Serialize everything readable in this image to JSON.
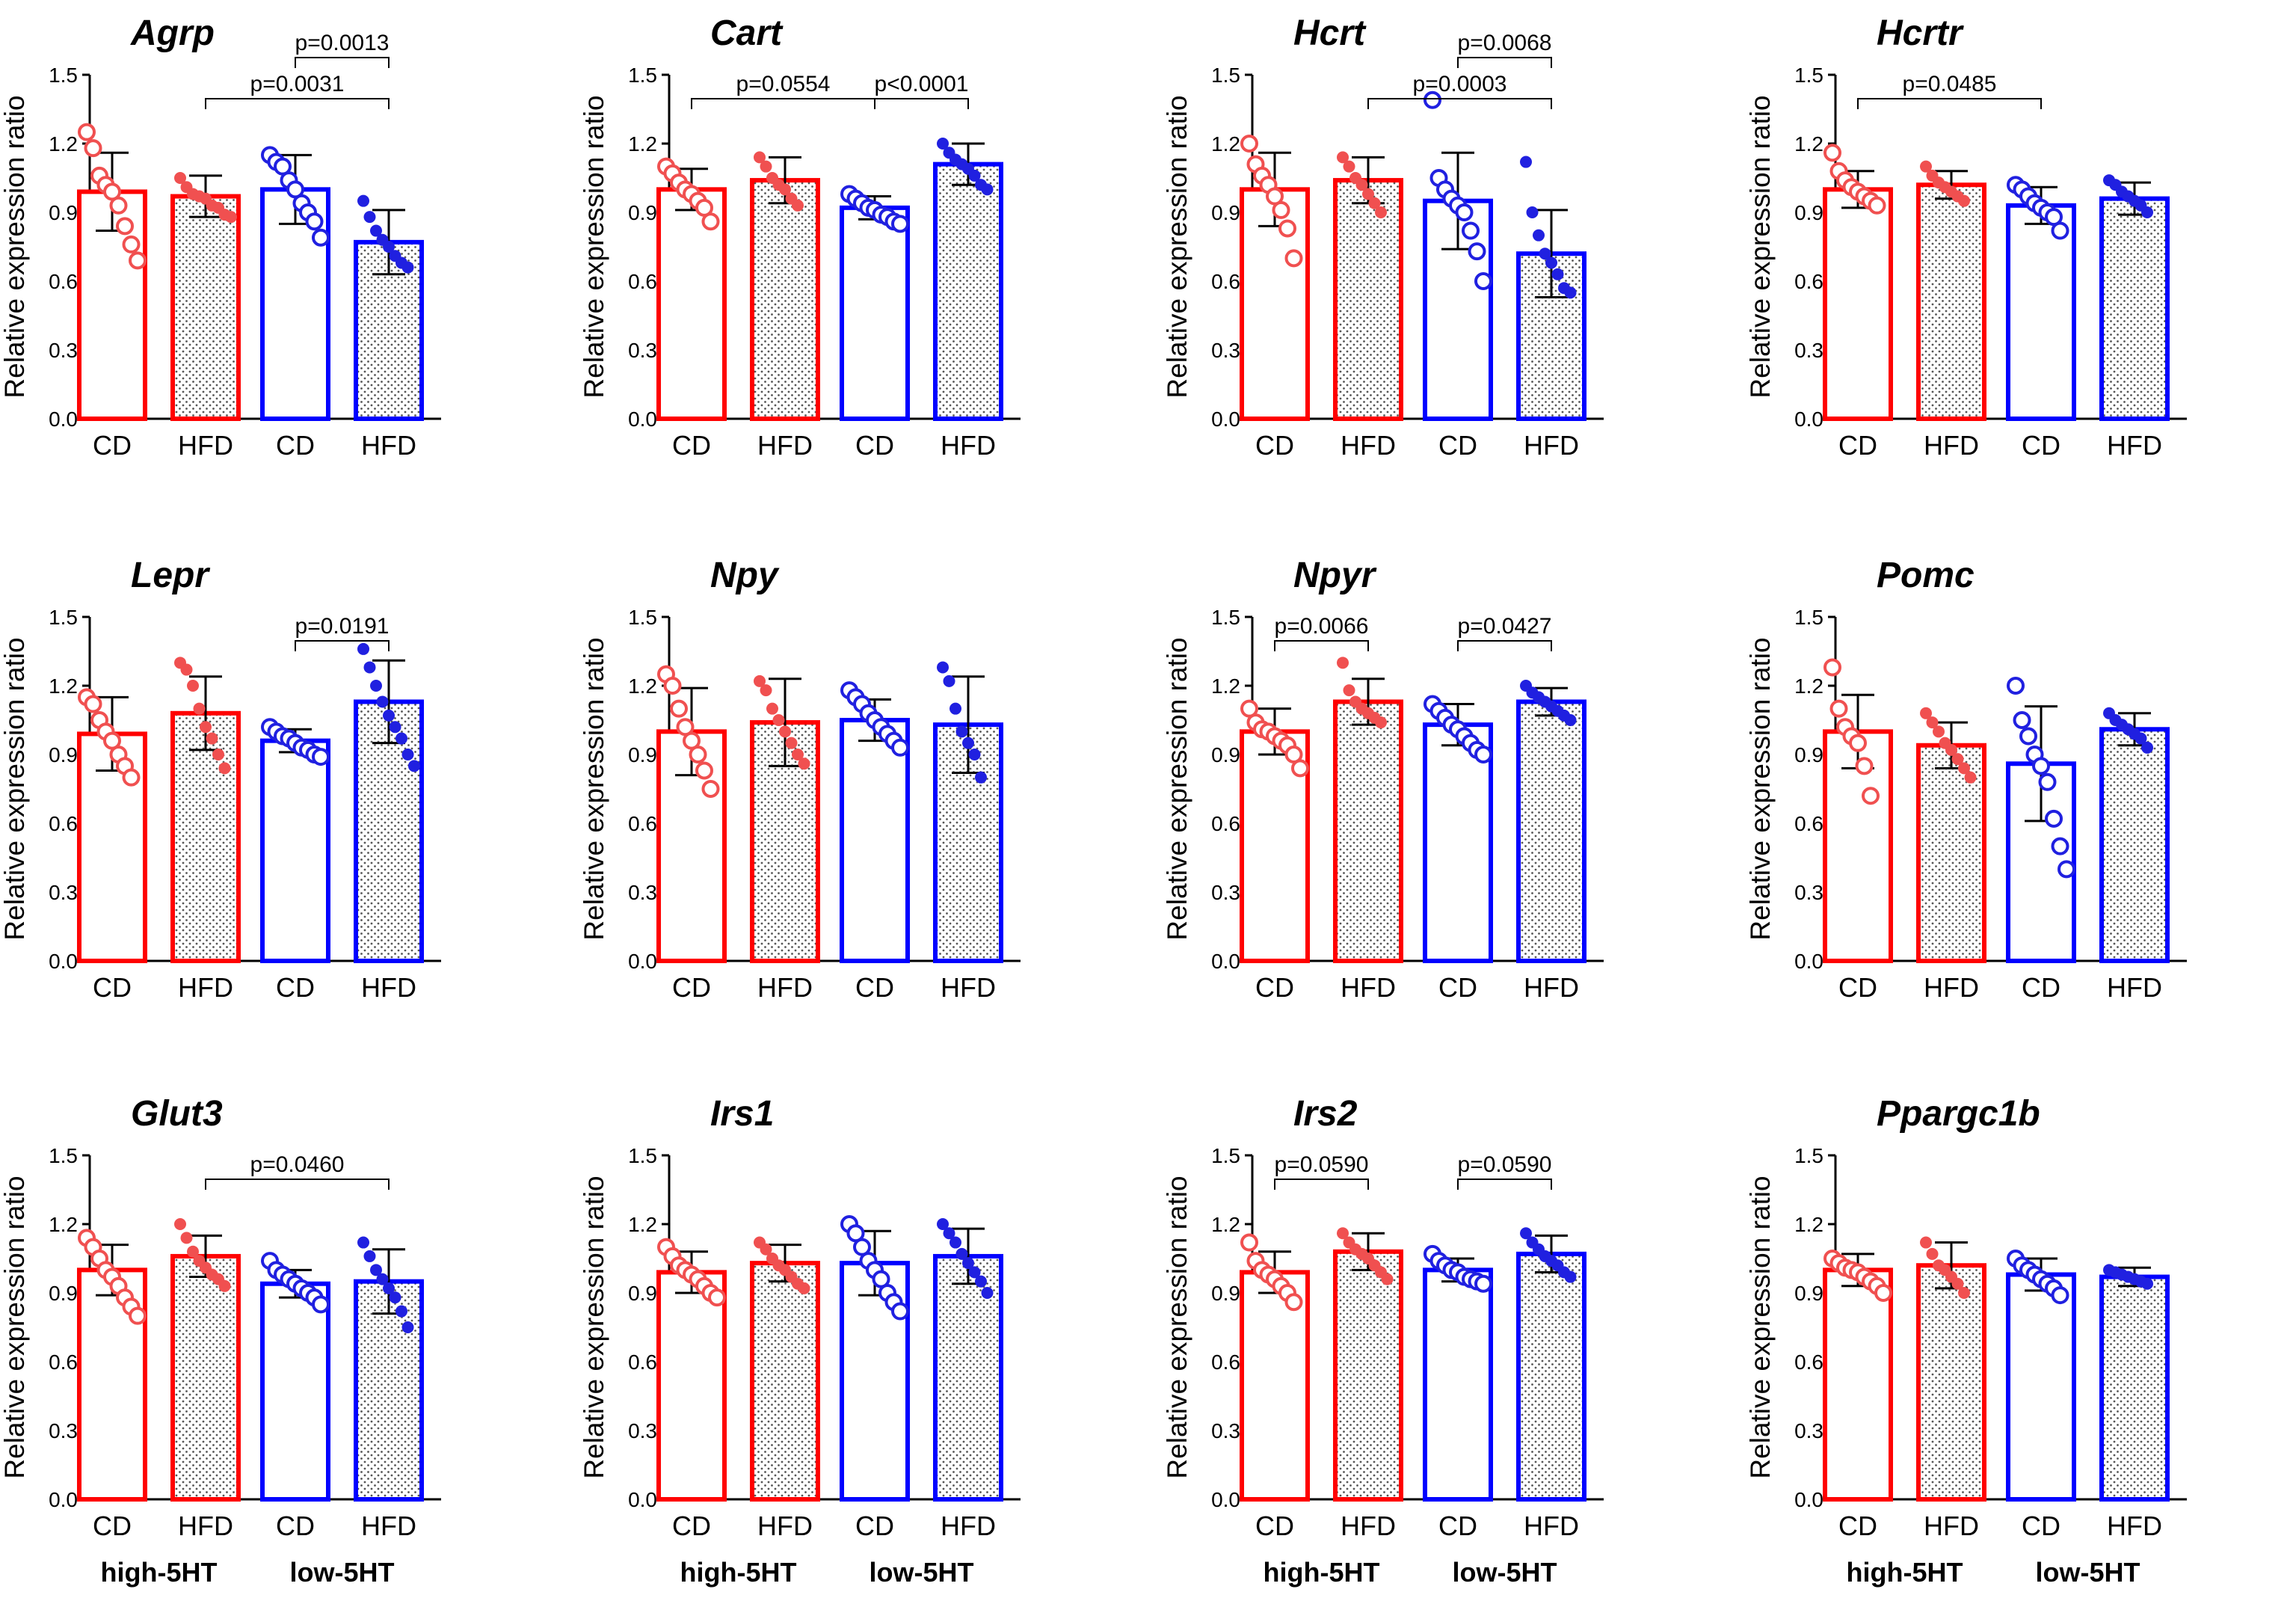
{
  "figure": {
    "colors": {
      "high": "#ff0000",
      "low": "#0000ff",
      "axis": "#000000",
      "point_high": "#f05050",
      "point_low": "#2020e0"
    },
    "group_labels": [
      "high-5HT",
      "low-5HT"
    ]
  },
  "chart_data": [
    {
      "type": "bar",
      "title": "Agrp",
      "ylabel": "Relative expression ratio",
      "ylim": [
        0,
        1.5
      ],
      "yticks": [
        "0.0",
        "0.3",
        "0.6",
        "0.9",
        "1.2",
        "1.5"
      ],
      "categories": [
        "CD",
        "HFD",
        "CD",
        "HFD"
      ],
      "means": [
        0.99,
        0.97,
        1.0,
        0.77
      ],
      "sd": [
        0.17,
        0.09,
        0.15,
        0.14
      ],
      "points": [
        [
          1.25,
          1.18,
          1.06,
          1.02,
          0.99,
          0.93,
          0.84,
          0.76,
          0.69
        ],
        [
          1.05,
          1.01,
          0.98,
          0.97,
          0.96,
          0.93,
          0.92,
          0.89,
          0.88
        ],
        [
          1.15,
          1.12,
          1.1,
          1.04,
          1.0,
          0.94,
          0.9,
          0.86,
          0.79
        ],
        [
          0.95,
          0.88,
          0.82,
          0.78,
          0.75,
          0.71,
          0.68,
          0.66
        ]
      ],
      "comparisons": [
        {
          "text": "p=0.0031",
          "from": 1,
          "to": 3,
          "level": 0
        },
        {
          "text": "p=0.0013",
          "from": 2,
          "to": 3,
          "level": 1
        }
      ],
      "show_group_labels": false
    },
    {
      "type": "bar",
      "title": "Cart",
      "ylabel": "Relative expression ratio",
      "ylim": [
        0,
        1.5
      ],
      "yticks": [
        "0.0",
        "0.3",
        "0.6",
        "0.9",
        "1.2",
        "1.5"
      ],
      "categories": [
        "CD",
        "HFD",
        "CD",
        "HFD"
      ],
      "means": [
        1.0,
        1.04,
        0.92,
        1.11
      ],
      "sd": [
        0.09,
        0.1,
        0.05,
        0.09
      ],
      "points": [
        [
          1.1,
          1.07,
          1.03,
          1.0,
          0.98,
          0.95,
          0.92,
          0.86
        ],
        [
          1.14,
          1.1,
          1.05,
          1.02,
          1.0,
          0.96,
          0.93
        ],
        [
          0.98,
          0.96,
          0.94,
          0.92,
          0.91,
          0.89,
          0.88,
          0.86,
          0.85
        ],
        [
          1.2,
          1.16,
          1.13,
          1.11,
          1.09,
          1.06,
          1.02,
          1.0
        ]
      ],
      "comparisons": [
        {
          "text": "p=0.0554",
          "from": 0,
          "to": 2,
          "level": 0
        },
        {
          "text": "p<0.0001",
          "from": 2,
          "to": 3,
          "level": 0
        }
      ],
      "show_group_labels": false
    },
    {
      "type": "bar",
      "title": "Hcrt",
      "ylabel": "Relative expression ratio",
      "ylim": [
        0,
        1.5
      ],
      "yticks": [
        "0.0",
        "0.3",
        "0.6",
        "0.9",
        "1.2",
        "1.5"
      ],
      "categories": [
        "CD",
        "HFD",
        "CD",
        "HFD"
      ],
      "means": [
        1.0,
        1.04,
        0.95,
        0.72
      ],
      "sd": [
        0.16,
        0.1,
        0.21,
        0.19
      ],
      "points": [
        [
          1.2,
          1.11,
          1.06,
          1.02,
          0.97,
          0.91,
          0.83,
          0.7
        ],
        [
          1.14,
          1.1,
          1.05,
          1.02,
          0.98,
          0.94,
          0.9
        ],
        [
          1.39,
          1.05,
          1.0,
          0.96,
          0.93,
          0.9,
          0.82,
          0.73,
          0.6
        ],
        [
          1.12,
          0.9,
          0.8,
          0.72,
          0.68,
          0.63,
          0.57,
          0.55
        ]
      ],
      "comparisons": [
        {
          "text": "p=0.0003",
          "from": 1,
          "to": 3,
          "level": 0
        },
        {
          "text": "p=0.0068",
          "from": 2,
          "to": 3,
          "level": 1
        }
      ],
      "show_group_labels": false
    },
    {
      "type": "bar",
      "title": "Hcrtr",
      "ylabel": "Relative expression ratio",
      "ylim": [
        0,
        1.5
      ],
      "yticks": [
        "0.0",
        "0.3",
        "0.6",
        "0.9",
        "1.2",
        "1.5"
      ],
      "categories": [
        "CD",
        "HFD",
        "CD",
        "HFD"
      ],
      "means": [
        1.0,
        1.02,
        0.93,
        0.96
      ],
      "sd": [
        0.08,
        0.06,
        0.08,
        0.07
      ],
      "points": [
        [
          1.16,
          1.08,
          1.04,
          1.01,
          0.99,
          0.97,
          0.95,
          0.93
        ],
        [
          1.1,
          1.06,
          1.03,
          1.01,
          0.99,
          0.97,
          0.95
        ],
        [
          1.02,
          1.0,
          0.97,
          0.94,
          0.92,
          0.9,
          0.88,
          0.82
        ],
        [
          1.04,
          1.02,
          0.99,
          0.97,
          0.95,
          0.93,
          0.9
        ]
      ],
      "comparisons": [
        {
          "text": "p=0.0485",
          "from": 0,
          "to": 2,
          "level": 0
        }
      ],
      "show_group_labels": false
    },
    {
      "type": "bar",
      "title": "Lepr",
      "ylabel": "Relative expression ratio",
      "ylim": [
        0,
        1.5
      ],
      "yticks": [
        "0.0",
        "0.3",
        "0.6",
        "0.9",
        "1.2",
        "1.5"
      ],
      "categories": [
        "CD",
        "HFD",
        "CD",
        "HFD"
      ],
      "means": [
        0.99,
        1.08,
        0.96,
        1.13
      ],
      "sd": [
        0.16,
        0.16,
        0.05,
        0.18
      ],
      "points": [
        [
          1.15,
          1.12,
          1.05,
          1.0,
          0.96,
          0.9,
          0.85,
          0.8
        ],
        [
          1.3,
          1.27,
          1.2,
          1.1,
          1.02,
          0.97,
          0.9,
          0.84
        ],
        [
          1.02,
          1.0,
          0.98,
          0.97,
          0.95,
          0.93,
          0.92,
          0.9,
          0.89
        ],
        [
          1.36,
          1.28,
          1.2,
          1.13,
          1.07,
          1.02,
          0.97,
          0.9,
          0.85
        ]
      ],
      "comparisons": [
        {
          "text": "p=0.0191",
          "from": 2,
          "to": 3,
          "level": 0
        }
      ],
      "show_group_labels": false
    },
    {
      "type": "bar",
      "title": "Npy",
      "ylabel": "Relative expression ratio",
      "ylim": [
        0,
        1.5
      ],
      "yticks": [
        "0.0",
        "0.3",
        "0.6",
        "0.9",
        "1.2",
        "1.5"
      ],
      "categories": [
        "CD",
        "HFD",
        "CD",
        "HFD"
      ],
      "means": [
        1.0,
        1.04,
        1.05,
        1.03
      ],
      "sd": [
        0.19,
        0.19,
        0.09,
        0.21
      ],
      "points": [
        [
          1.25,
          1.2,
          1.1,
          1.02,
          0.96,
          0.9,
          0.83,
          0.75
        ],
        [
          1.22,
          1.18,
          1.1,
          1.05,
          1.0,
          0.95,
          0.9,
          0.86
        ],
        [
          1.18,
          1.15,
          1.12,
          1.08,
          1.05,
          1.02,
          0.99,
          0.96,
          0.93
        ],
        [
          1.28,
          1.22,
          1.1,
          1.0,
          0.95,
          0.9,
          0.8
        ]
      ],
      "comparisons": [],
      "show_group_labels": false
    },
    {
      "type": "bar",
      "title": "Npyr",
      "ylabel": "Relative expression ratio",
      "ylim": [
        0,
        1.5
      ],
      "yticks": [
        "0.0",
        "0.3",
        "0.6",
        "0.9",
        "1.2",
        "1.5"
      ],
      "categories": [
        "CD",
        "HFD",
        "CD",
        "HFD"
      ],
      "means": [
        1.0,
        1.13,
        1.03,
        1.13
      ],
      "sd": [
        0.1,
        0.1,
        0.09,
        0.06
      ],
      "points": [
        [
          1.1,
          1.04,
          1.01,
          1.0,
          0.98,
          0.96,
          0.94,
          0.9,
          0.84
        ],
        [
          1.3,
          1.18,
          1.13,
          1.1,
          1.08,
          1.06,
          1.04
        ],
        [
          1.12,
          1.09,
          1.06,
          1.03,
          1.01,
          0.98,
          0.95,
          0.92,
          0.9
        ],
        [
          1.2,
          1.17,
          1.15,
          1.13,
          1.11,
          1.09,
          1.07,
          1.05
        ]
      ],
      "comparisons": [
        {
          "text": "p=0.0066",
          "from": 0,
          "to": 1,
          "level": 0
        },
        {
          "text": "p=0.0427",
          "from": 2,
          "to": 3,
          "level": 0
        }
      ],
      "show_group_labels": false
    },
    {
      "type": "bar",
      "title": "Pomc",
      "ylabel": "Relative expression ratio",
      "ylim": [
        0,
        1.5
      ],
      "yticks": [
        "0.0",
        "0.3",
        "0.6",
        "0.9",
        "1.2",
        "1.5"
      ],
      "categories": [
        "CD",
        "HFD",
        "CD",
        "HFD"
      ],
      "means": [
        1.0,
        0.94,
        0.86,
        1.01
      ],
      "sd": [
        0.16,
        0.1,
        0.25,
        0.07
      ],
      "points": [
        [
          1.28,
          1.1,
          1.02,
          0.98,
          0.95,
          0.85,
          0.72
        ],
        [
          1.08,
          1.04,
          1.0,
          0.95,
          0.92,
          0.88,
          0.84,
          0.8
        ],
        [
          1.2,
          1.05,
          0.98,
          0.9,
          0.85,
          0.78,
          0.62,
          0.5,
          0.4
        ],
        [
          1.08,
          1.05,
          1.03,
          1.01,
          0.99,
          0.97,
          0.93
        ]
      ],
      "comparisons": [],
      "show_group_labels": false
    },
    {
      "type": "bar",
      "title": "Glut3",
      "ylabel": "Relative expression ratio",
      "ylim": [
        0,
        1.5
      ],
      "yticks": [
        "0.0",
        "0.3",
        "0.6",
        "0.9",
        "1.2",
        "1.5"
      ],
      "categories": [
        "CD",
        "HFD",
        "CD",
        "HFD"
      ],
      "means": [
        1.0,
        1.06,
        0.94,
        0.95
      ],
      "sd": [
        0.11,
        0.09,
        0.06,
        0.14
      ],
      "points": [
        [
          1.14,
          1.1,
          1.05,
          1.0,
          0.97,
          0.93,
          0.88,
          0.84,
          0.8
        ],
        [
          1.2,
          1.14,
          1.08,
          1.04,
          1.01,
          0.98,
          0.96,
          0.93
        ],
        [
          1.04,
          1.0,
          0.98,
          0.96,
          0.94,
          0.92,
          0.9,
          0.88,
          0.85
        ],
        [
          1.12,
          1.06,
          1.0,
          0.96,
          0.92,
          0.88,
          0.82,
          0.75
        ]
      ],
      "comparisons": [
        {
          "text": "p=0.0460",
          "from": 1,
          "to": 3,
          "level": 0
        }
      ],
      "show_group_labels": true
    },
    {
      "type": "bar",
      "title": "Irs1",
      "ylabel": "Relative expression ratio",
      "ylim": [
        0,
        1.5
      ],
      "yticks": [
        "0.0",
        "0.3",
        "0.6",
        "0.9",
        "1.2",
        "1.5"
      ],
      "categories": [
        "CD",
        "HFD",
        "CD",
        "HFD"
      ],
      "means": [
        0.99,
        1.03,
        1.03,
        1.06
      ],
      "sd": [
        0.09,
        0.08,
        0.14,
        0.12
      ],
      "points": [
        [
          1.1,
          1.06,
          1.02,
          1.0,
          0.98,
          0.96,
          0.93,
          0.9,
          0.88
        ],
        [
          1.12,
          1.09,
          1.05,
          1.02,
          1.0,
          0.97,
          0.94,
          0.92
        ],
        [
          1.2,
          1.16,
          1.1,
          1.04,
          1.0,
          0.96,
          0.9,
          0.86,
          0.82
        ],
        [
          1.2,
          1.16,
          1.12,
          1.07,
          1.03,
          0.99,
          0.95,
          0.9
        ]
      ],
      "comparisons": [],
      "show_group_labels": true
    },
    {
      "type": "bar",
      "title": "Irs2",
      "ylabel": "Relative expression ratio",
      "ylim": [
        0,
        1.5
      ],
      "yticks": [
        "0.0",
        "0.3",
        "0.6",
        "0.9",
        "1.2",
        "1.5"
      ],
      "categories": [
        "CD",
        "HFD",
        "CD",
        "HFD"
      ],
      "means": [
        0.99,
        1.08,
        1.0,
        1.07
      ],
      "sd": [
        0.09,
        0.08,
        0.05,
        0.08
      ],
      "points": [
        [
          1.12,
          1.04,
          1.0,
          0.98,
          0.96,
          0.93,
          0.9,
          0.86
        ],
        [
          1.16,
          1.12,
          1.09,
          1.07,
          1.05,
          1.02,
          0.99,
          0.96
        ],
        [
          1.07,
          1.04,
          1.02,
          1.0,
          0.99,
          0.97,
          0.96,
          0.95,
          0.94
        ],
        [
          1.16,
          1.12,
          1.09,
          1.06,
          1.04,
          1.02,
          0.99,
          0.97
        ]
      ],
      "comparisons": [
        {
          "text": "p=0.0590",
          "from": 0,
          "to": 1,
          "level": 0
        },
        {
          "text": "p=0.0590",
          "from": 2,
          "to": 3,
          "level": 0
        }
      ],
      "show_group_labels": true
    },
    {
      "type": "bar",
      "title": "Ppargc1b",
      "ylabel": "Relative expression ratio",
      "ylim": [
        0,
        1.5
      ],
      "yticks": [
        "0.0",
        "0.3",
        "0.6",
        "0.9",
        "1.2",
        "1.5"
      ],
      "categories": [
        "CD",
        "HFD",
        "CD",
        "HFD"
      ],
      "means": [
        1.0,
        1.02,
        0.98,
        0.97
      ],
      "sd": [
        0.07,
        0.1,
        0.07,
        0.04
      ],
      "points": [
        [
          1.05,
          1.03,
          1.01,
          1.0,
          0.99,
          0.97,
          0.95,
          0.93,
          0.9
        ],
        [
          1.12,
          1.07,
          1.02,
          1.0,
          0.97,
          0.94,
          0.9
        ],
        [
          1.05,
          1.02,
          1.0,
          0.98,
          0.96,
          0.94,
          0.92,
          0.89
        ],
        [
          1.0,
          0.99,
          0.98,
          0.97,
          0.96,
          0.95,
          0.94
        ]
      ],
      "comparisons": [],
      "show_group_labels": true
    }
  ]
}
